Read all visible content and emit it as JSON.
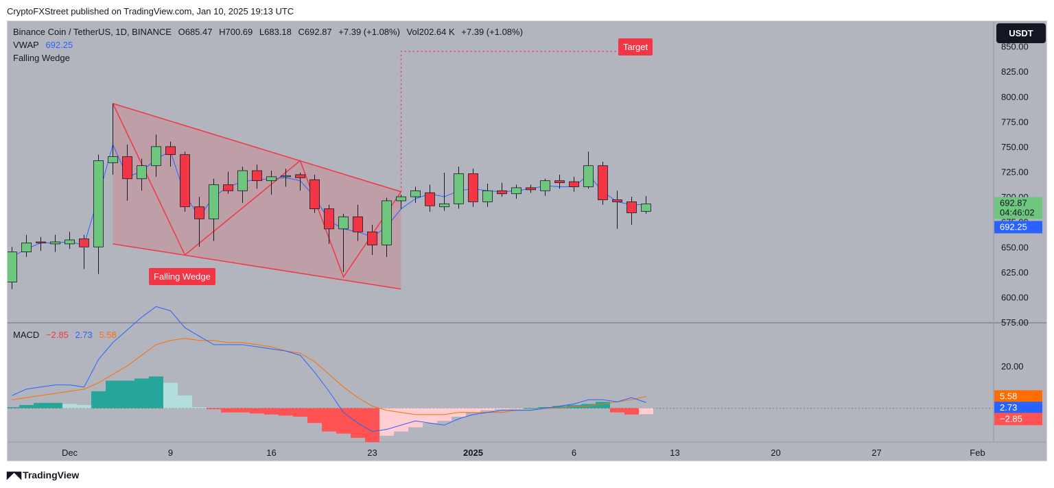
{
  "header": {
    "published": "CryptoFXStreet published on TradingView.com, Jan 10, 2025 19:13 UTC"
  },
  "legend": {
    "symbol": "Binance Coin / TetherUS, 1D, BINANCE",
    "open": "O685.47",
    "high": "H700.69",
    "low": "L683.18",
    "close": "C692.87",
    "change": "+7.39 (+1.08%)",
    "volume": "Vol202.64 K",
    "volume_change": "+7.39 (+1.08%)",
    "vwap_label": "VWAP",
    "vwap_value": "692.25",
    "pattern_label": "Falling Wedge",
    "macd_label": "MACD",
    "macd_hist": "−2.85",
    "macd_line": "2.73",
    "macd_signal": "5.58"
  },
  "currency_button": "USDT",
  "annotations": {
    "target": "Target",
    "falling_wedge": "Falling Wedge"
  },
  "footer": {
    "brand": "TradingView"
  },
  "colors": {
    "up": "#6fc67f",
    "down": "#f23645",
    "vwap": "#2962ff",
    "signal": "#ff6d00",
    "wedge": "#f23645",
    "hist_up_strong": "#26a69a",
    "hist_up_weak": "#b2dfdb",
    "hist_down_strong": "#ff5252",
    "hist_down_weak": "#ffcdd2"
  },
  "chart_data": [
    {
      "type": "candlestick",
      "title": "Binance Coin / TetherUS, 1D, BINANCE",
      "ylim": [
        575,
        875
      ],
      "yticks": [
        575,
        600,
        625,
        650,
        675,
        700,
        725,
        750,
        775,
        800,
        825,
        850
      ],
      "ytick_labels": [
        "575.00",
        "600.00",
        "625.00",
        "650.00",
        "675.00",
        "700.00",
        "725.00",
        "750.00",
        "775.00",
        "800.00",
        "825.00",
        "850.00"
      ],
      "x_index_ticks": [
        4,
        11,
        18,
        25,
        32,
        39,
        46,
        53,
        60,
        67
      ],
      "xtick_labels": [
        "Dec",
        "9",
        "16",
        "23",
        "2025",
        "6",
        "13",
        "20",
        "27",
        "Feb"
      ],
      "candles": [
        {
          "o": 615,
          "h": 650,
          "l": 608,
          "c": 645
        },
        {
          "o": 645,
          "h": 662,
          "l": 640,
          "c": 654
        },
        {
          "o": 655,
          "h": 660,
          "l": 646,
          "c": 654
        },
        {
          "o": 653,
          "h": 662,
          "l": 645,
          "c": 655
        },
        {
          "o": 653,
          "h": 665,
          "l": 648,
          "c": 657
        },
        {
          "o": 658,
          "h": 662,
          "l": 628,
          "c": 650
        },
        {
          "o": 650,
          "h": 742,
          "l": 623,
          "c": 736
        },
        {
          "o": 734,
          "h": 793,
          "l": 722,
          "c": 740
        },
        {
          "o": 740,
          "h": 752,
          "l": 696,
          "c": 718
        },
        {
          "o": 718,
          "h": 738,
          "l": 706,
          "c": 731
        },
        {
          "o": 731,
          "h": 762,
          "l": 720,
          "c": 750
        },
        {
          "o": 750,
          "h": 755,
          "l": 730,
          "c": 742
        },
        {
          "o": 742,
          "h": 745,
          "l": 685,
          "c": 690
        },
        {
          "o": 690,
          "h": 700,
          "l": 650,
          "c": 678
        },
        {
          "o": 678,
          "h": 718,
          "l": 656,
          "c": 712
        },
        {
          "o": 712,
          "h": 725,
          "l": 703,
          "c": 706
        },
        {
          "o": 706,
          "h": 730,
          "l": 694,
          "c": 726
        },
        {
          "o": 726,
          "h": 732,
          "l": 708,
          "c": 716
        },
        {
          "o": 716,
          "h": 726,
          "l": 702,
          "c": 720
        },
        {
          "o": 720,
          "h": 728,
          "l": 710,
          "c": 721
        },
        {
          "o": 722,
          "h": 724,
          "l": 706,
          "c": 719
        },
        {
          "o": 717,
          "h": 722,
          "l": 684,
          "c": 688
        },
        {
          "o": 688,
          "h": 692,
          "l": 653,
          "c": 668
        },
        {
          "o": 668,
          "h": 683,
          "l": 625,
          "c": 680
        },
        {
          "o": 680,
          "h": 692,
          "l": 656,
          "c": 665
        },
        {
          "o": 665,
          "h": 672,
          "l": 642,
          "c": 652
        },
        {
          "o": 652,
          "h": 699,
          "l": 640,
          "c": 696
        },
        {
          "o": 696,
          "h": 702,
          "l": 688,
          "c": 700
        },
        {
          "o": 700,
          "h": 710,
          "l": 694,
          "c": 706
        },
        {
          "o": 704,
          "h": 712,
          "l": 685,
          "c": 691
        },
        {
          "o": 690,
          "h": 724,
          "l": 686,
          "c": 693
        },
        {
          "o": 693,
          "h": 730,
          "l": 688,
          "c": 723
        },
        {
          "o": 723,
          "h": 728,
          "l": 690,
          "c": 695
        },
        {
          "o": 695,
          "h": 713,
          "l": 690,
          "c": 706
        },
        {
          "o": 706,
          "h": 714,
          "l": 700,
          "c": 703
        },
        {
          "o": 703,
          "h": 712,
          "l": 698,
          "c": 709
        },
        {
          "o": 709,
          "h": 712,
          "l": 704,
          "c": 707
        },
        {
          "o": 706,
          "h": 718,
          "l": 701,
          "c": 716
        },
        {
          "o": 716,
          "h": 722,
          "l": 708,
          "c": 714
        },
        {
          "o": 715,
          "h": 720,
          "l": 705,
          "c": 710
        },
        {
          "o": 710,
          "h": 745,
          "l": 708,
          "c": 731
        },
        {
          "o": 731,
          "h": 735,
          "l": 692,
          "c": 697
        },
        {
          "o": 697,
          "h": 706,
          "l": 668,
          "c": 695
        },
        {
          "o": 695,
          "h": 700,
          "l": 672,
          "c": 684
        },
        {
          "o": 685.47,
          "h": 700.69,
          "l": 683.18,
          "c": 692.87
        }
      ],
      "vwap": [
        640,
        648,
        654,
        654,
        655,
        652,
        700,
        752,
        720,
        725,
        738,
        745,
        702,
        680,
        700,
        710,
        715,
        717,
        718,
        719,
        716,
        700,
        676,
        668,
        665,
        660,
        670,
        688,
        698,
        703,
        700,
        706,
        708,
        706,
        705,
        706,
        708,
        711,
        710,
        710,
        722,
        705,
        695,
        692,
        692.25
      ],
      "falling_wedge": {
        "upper_line": [
          [
            7,
            793
          ],
          [
            27,
            705
          ]
        ],
        "lower_line": [
          [
            7,
            653
          ],
          [
            27,
            608
          ]
        ],
        "zigzag": [
          [
            7,
            793
          ],
          [
            12,
            642
          ],
          [
            20,
            736
          ],
          [
            23,
            620
          ],
          [
            27,
            705
          ]
        ],
        "target_price": 845,
        "target_x_index": 27,
        "target_x_end_index": 43
      },
      "last_price_label": "692.87",
      "countdown_label": "04:46:02",
      "vwap_price_label": "692.25"
    },
    {
      "type": "bar+line",
      "title": "MACD",
      "ylim": [
        -16,
        40
      ],
      "yticks": [
        20
      ],
      "ytick_labels": [
        "20.00"
      ],
      "histogram": [
        0.5,
        1.5,
        2.5,
        2.5,
        2.0,
        1.5,
        8,
        13,
        13,
        14,
        15,
        12,
        6,
        0.5,
        -0.5,
        -2,
        -2,
        -2.5,
        -3,
        -3.5,
        -4,
        -7,
        -11,
        -12,
        -14,
        -16,
        -13,
        -11,
        -9,
        -7,
        -6,
        -4,
        -2,
        -1,
        -0.5,
        -0.3,
        0,
        0.5,
        1,
        1.5,
        2,
        3,
        -2,
        -3,
        -2.85
      ],
      "macd_line": [
        6,
        9,
        10,
        11,
        11,
        10,
        23,
        31,
        37,
        43,
        48,
        46,
        38,
        34,
        30,
        30,
        30,
        29,
        28,
        27,
        25,
        17,
        8,
        -2,
        -7,
        -11,
        -10,
        -8,
        -6,
        -7,
        -8,
        -5,
        -3,
        -2,
        -1,
        -1,
        -1,
        0,
        1,
        2,
        4,
        4,
        3,
        5,
        2.73
      ],
      "signal_line": [
        4,
        5,
        6,
        7,
        8,
        9,
        12,
        16,
        20,
        25,
        30,
        32,
        33,
        32,
        32,
        31,
        31,
        30,
        29,
        27,
        26,
        22,
        16,
        10,
        5,
        1,
        -1,
        -2,
        -3,
        -3,
        -3,
        -2,
        -2,
        -2,
        -2,
        -1,
        -1,
        0,
        0,
        1,
        1,
        2,
        3,
        4,
        5.58
      ],
      "hist_label": "−2.85",
      "macd_value_label": "2.73",
      "signal_value_label": "5.58"
    }
  ]
}
